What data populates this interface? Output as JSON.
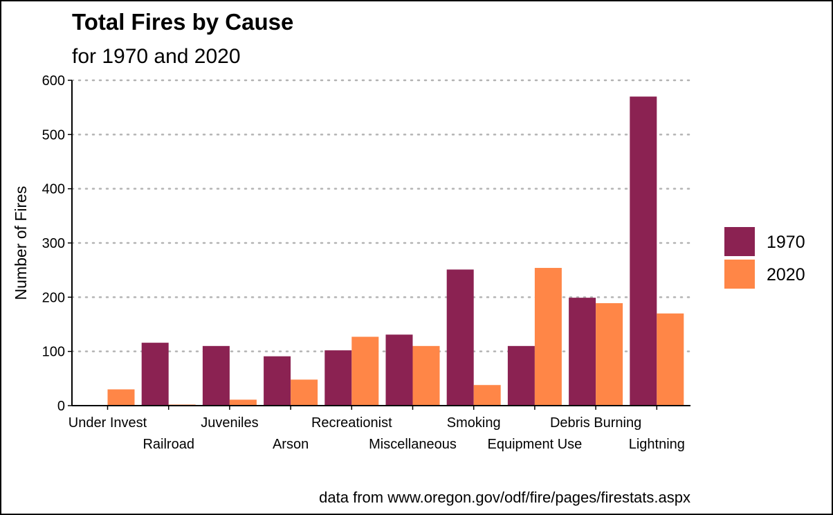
{
  "chart_data": {
    "type": "bar",
    "title": "Total Fires by Cause",
    "subtitle": "for 1970 and 2020",
    "xlabel": "",
    "ylabel": "Number of Fires",
    "caption": "data from www.oregon.gov/odf/fire/pages/firestats.aspx",
    "ylim": [
      0,
      600
    ],
    "yticks": [
      0,
      100,
      200,
      300,
      400,
      500,
      600
    ],
    "grid": "horizontal dotted",
    "legend_position": "right",
    "categories": [
      "Under Invest",
      "Railroad",
      "Juveniles",
      "Arson",
      "Recreationist",
      "Miscellaneous",
      "Smoking",
      "Equipment Use",
      "Debris Burning",
      "Lightning"
    ],
    "series": [
      {
        "name": "1970",
        "color": "#8B2252",
        "values": [
          0,
          116,
          110,
          91,
          102,
          131,
          251,
          110,
          199,
          570
        ]
      },
      {
        "name": "2020",
        "color": "#FF8647",
        "values": [
          30,
          2,
          11,
          48,
          127,
          110,
          38,
          254,
          189,
          170
        ]
      }
    ]
  }
}
